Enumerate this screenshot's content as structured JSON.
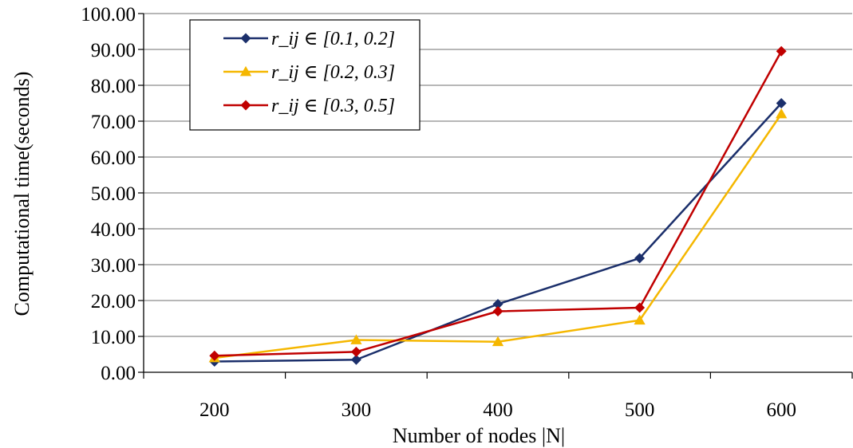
{
  "chart_data": {
    "type": "line",
    "title": "",
    "xlabel": "Number of nodes |N|",
    "ylabel": "Computational time(seconds)",
    "categories": [
      "200",
      "300",
      "400",
      "500",
      "600"
    ],
    "ylim": [
      0,
      100
    ],
    "yticks": [
      "0.00",
      "10.00",
      "20.00",
      "30.00",
      "40.00",
      "50.00",
      "60.00",
      "70.00",
      "80.00",
      "90.00",
      "100.00"
    ],
    "grid": "horizontal",
    "legend_position": "top-left",
    "series": [
      {
        "name": "r_ij ∈ [0.1, 0.2]",
        "color": "#1b2f6b",
        "marker": "diamond",
        "values": [
          3.0,
          3.5,
          19.0,
          31.8,
          75.0
        ]
      },
      {
        "name": "r_ij ∈ [0.2, 0.3]",
        "color": "#f5b700",
        "marker": "triangle",
        "values": [
          4.0,
          9.0,
          8.5,
          14.5,
          72.0
        ]
      },
      {
        "name": "r_ij ∈ [0.3, 0.5]",
        "color": "#c00000",
        "marker": "diamond",
        "values": [
          4.6,
          5.7,
          17.0,
          18.0,
          89.5
        ]
      }
    ]
  }
}
